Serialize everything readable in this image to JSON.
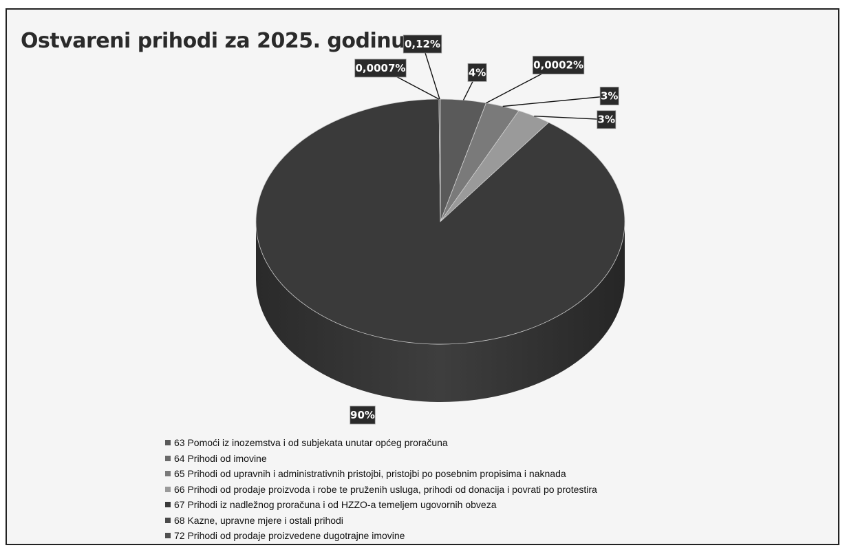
{
  "chart_data": {
    "type": "pie",
    "title": "Ostvareni prihodi za 2025. godinu",
    "slices": [
      {
        "name": "63 Pomoći iz inozemstva i od subjekata unutar općeg proračuna",
        "value": 4,
        "label": "4%",
        "color": "#5a5a5a"
      },
      {
        "name": "64 Prihodi od imovine",
        "value": 0.0002,
        "label": "0,0002%",
        "color": "#6a6a6a"
      },
      {
        "name": "65 Prihodi od upravnih i administrativnih pristojbi, pristojbi po posebnim propisima i naknada",
        "value": 3,
        "label": "3%",
        "color": "#7a7a7a"
      },
      {
        "name": "66 Prihodi od prodaje proizvoda i robe te pruženih usluga, prihodi od donacija i povrati po protestira",
        "value": 3,
        "label": "3%",
        "color": "#9a9a9a"
      },
      {
        "name": "67 Prihodi iz nadležnog proračuna i od HZZO-a temeljem ugovornih obveza",
        "value": 90,
        "label": "90%",
        "color": "#3a3a3a"
      },
      {
        "name": "68 Kazne, upravne mjere i ostali prihodi",
        "value": 0.0007,
        "label": "0,0007%",
        "color": "#4a4a4a"
      },
      {
        "name": "72 Prihodi od prodaje proizvedene dugotrajne imovine",
        "value": 0.12,
        "label": "0,12%",
        "color": "#505050"
      }
    ],
    "legend_position": "bottom"
  }
}
